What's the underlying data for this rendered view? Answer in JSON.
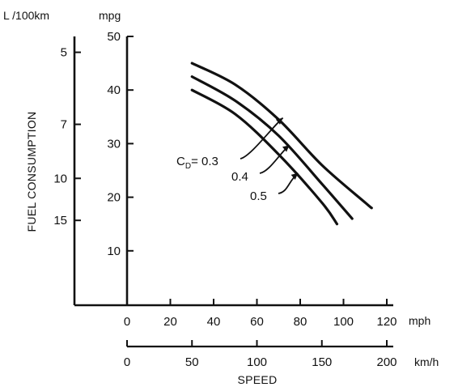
{
  "chart_data": {
    "type": "line",
    "xlabel": "SPEED",
    "ylabel": "FUEL CONSUMPTION",
    "x_unit_mph": "mph",
    "x_unit_kmh": "km/h",
    "y_unit_mpg": "mpg",
    "y_unit_l100km": "L /100km",
    "xlim_mph": [
      0,
      120
    ],
    "ylim_mpg": [
      0,
      50
    ],
    "xticks_mph": [
      0,
      20,
      40,
      60,
      80,
      100,
      120
    ],
    "xticks_kmh": [
      0,
      50,
      100,
      150,
      200
    ],
    "yticks_mpg": [
      10,
      20,
      30,
      40,
      50
    ],
    "yticks_l100km": [
      5,
      7,
      10,
      15
    ],
    "series": [
      {
        "name": "C",
        "subscript": "D",
        "label_suffix": "= 0.3",
        "x": [
          30,
          50,
          70,
          90,
          110,
          113
        ],
        "y": [
          45.0,
          41.0,
          34.5,
          26.0,
          19.0,
          18.0
        ]
      },
      {
        "name": "0.4",
        "x": [
          30,
          50,
          70,
          90,
          104
        ],
        "y": [
          42.5,
          38.0,
          31.5,
          22.5,
          16.0
        ]
      },
      {
        "name": "0.5",
        "x": [
          30,
          50,
          70,
          90,
          97
        ],
        "y": [
          40.0,
          35.5,
          28.0,
          19.0,
          15.0
        ]
      }
    ]
  }
}
